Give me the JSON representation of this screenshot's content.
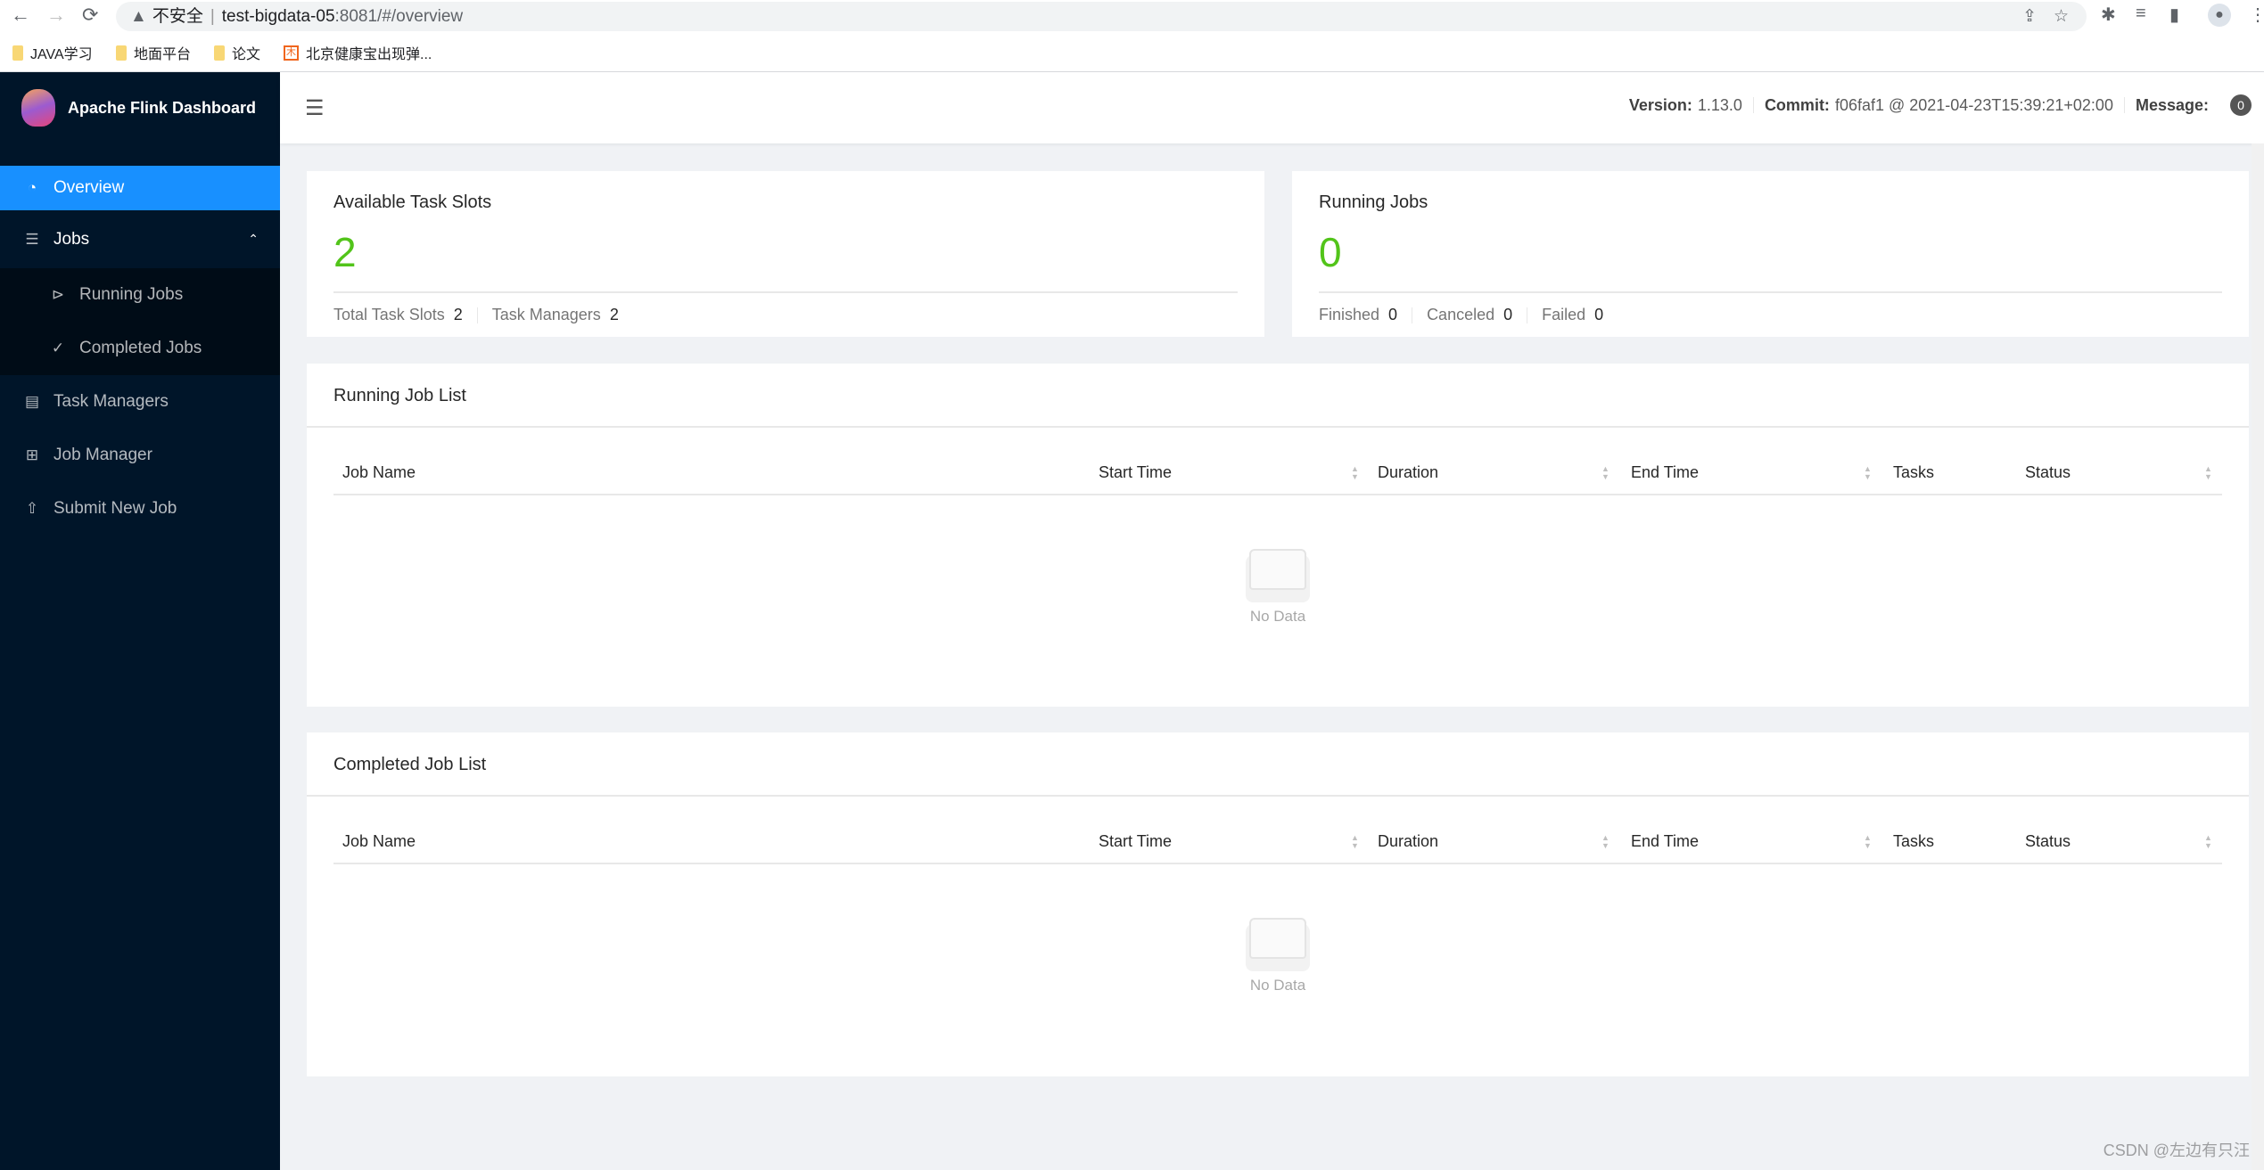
{
  "browser": {
    "back": "←",
    "forward": "→",
    "reload": "⟳",
    "security": "不安全",
    "url_host": "test-bigdata-05",
    "url_rest": ":8081/#/overview",
    "bookmarks": [
      {
        "label": "JAVA学习",
        "icon": "folder-icon"
      },
      {
        "label": "地面平台",
        "icon": "folder-icon"
      },
      {
        "label": "论文",
        "icon": "folder-icon"
      },
      {
        "label": "北京健康宝出现弹...",
        "icon": "site-favicon"
      }
    ]
  },
  "sidebar": {
    "title": "Apache Flink Dashboard",
    "items": [
      {
        "label": "Overview",
        "icon": "dashboard-icon"
      },
      {
        "label": "Jobs",
        "icon": "list-icon",
        "children": [
          {
            "label": "Running Jobs",
            "icon": "play-circle-icon"
          },
          {
            "label": "Completed Jobs",
            "icon": "check-circle-icon"
          }
        ]
      },
      {
        "label": "Task Managers",
        "icon": "schedule-icon"
      },
      {
        "label": "Job Manager",
        "icon": "build-icon"
      },
      {
        "label": "Submit New Job",
        "icon": "upload-icon"
      }
    ]
  },
  "header": {
    "version_label": "Version:",
    "version": "1.13.0",
    "commit_label": "Commit:",
    "commit": "f06faf1 @ 2021-04-23T15:39:21+02:00",
    "message_label": "Message:",
    "message_count": "0"
  },
  "slots": {
    "title": "Available Task Slots",
    "value": "2",
    "total_label": "Total Task Slots",
    "total": "2",
    "tm_label": "Task Managers",
    "tm": "2"
  },
  "jobs": {
    "title": "Running Jobs",
    "value": "0",
    "finished_label": "Finished",
    "finished": "0",
    "canceled_label": "Canceled",
    "canceled": "0",
    "failed_label": "Failed",
    "failed": "0"
  },
  "running_list": {
    "title": "Running Job List",
    "columns": [
      "Job Name",
      "Start Time",
      "Duration",
      "End Time",
      "Tasks",
      "Status"
    ],
    "empty": "No Data"
  },
  "completed_list": {
    "title": "Completed Job List",
    "columns": [
      "Job Name",
      "Start Time",
      "Duration",
      "End Time",
      "Tasks",
      "Status"
    ],
    "empty": "No Data"
  },
  "watermark": "CSDN @左边有只汪",
  "colors": {
    "sidebar": "#001529",
    "selected": "#1890ff",
    "stat": "#52c41a"
  }
}
